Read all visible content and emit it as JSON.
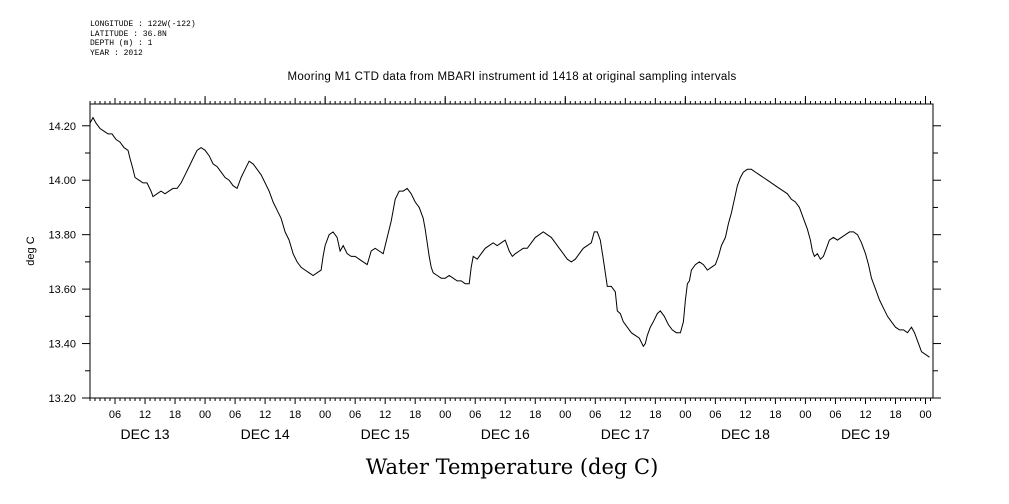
{
  "meta": {
    "longitude": "LONGITUDE : 122W(-122)",
    "latitude": "LATITUDE : 36.8N",
    "depth": "DEPTH (m) : 1",
    "year": "YEAR : 2012"
  },
  "chart_data": {
    "type": "line",
    "title": "Mooring M1 CTD data from MBARI instrument id 1418 at original sampling intervals",
    "xlabel": "Water Temperature (deg C)",
    "ylabel": "deg C",
    "xlim": [
      1.0,
      169.5
    ],
    "ylim": [
      13.2,
      14.28
    ],
    "y_ticks": [
      13.2,
      13.4,
      13.6,
      13.8,
      14.0,
      14.2
    ],
    "y_tick_labels": [
      "13.20",
      "13.40",
      "13.60",
      "13.80",
      "14.00",
      "14.20"
    ],
    "x_hour_ticks": [
      {
        "h": 6,
        "label": "06"
      },
      {
        "h": 12,
        "label": "12"
      },
      {
        "h": 18,
        "label": "18"
      },
      {
        "h": 24,
        "label": "00"
      },
      {
        "h": 30,
        "label": "06"
      },
      {
        "h": 36,
        "label": "12"
      },
      {
        "h": 42,
        "label": "18"
      },
      {
        "h": 48,
        "label": "00"
      },
      {
        "h": 54,
        "label": "06"
      },
      {
        "h": 60,
        "label": "12"
      },
      {
        "h": 66,
        "label": "18"
      },
      {
        "h": 72,
        "label": "00"
      },
      {
        "h": 78,
        "label": "06"
      },
      {
        "h": 84,
        "label": "12"
      },
      {
        "h": 90,
        "label": "18"
      },
      {
        "h": 96,
        "label": "00"
      },
      {
        "h": 102,
        "label": "06"
      },
      {
        "h": 108,
        "label": "12"
      },
      {
        "h": 114,
        "label": "18"
      },
      {
        "h": 120,
        "label": "00"
      },
      {
        "h": 126,
        "label": "06"
      },
      {
        "h": 132,
        "label": "12"
      },
      {
        "h": 138,
        "label": "18"
      },
      {
        "h": 144,
        "label": "00"
      },
      {
        "h": 150,
        "label": "06"
      },
      {
        "h": 156,
        "label": "12"
      },
      {
        "h": 162,
        "label": "18"
      },
      {
        "h": 168,
        "label": "00"
      }
    ],
    "x_day_labels": [
      {
        "h": 12,
        "label": "DEC 13"
      },
      {
        "h": 36,
        "label": "DEC 14"
      },
      {
        "h": 60,
        "label": "DEC 15"
      },
      {
        "h": 84,
        "label": "DEC 16"
      },
      {
        "h": 108,
        "label": "DEC 17"
      },
      {
        "h": 132,
        "label": "DEC 18"
      },
      {
        "h": 156,
        "label": "DEC 19"
      }
    ],
    "series": [
      {
        "points": [
          [
            1.0,
            14.21
          ],
          [
            1.6,
            14.23
          ],
          [
            2.2,
            14.21
          ],
          [
            3.0,
            14.19
          ],
          [
            3.8,
            14.18
          ],
          [
            4.6,
            14.17
          ],
          [
            5.4,
            14.17
          ],
          [
            6.2,
            14.15
          ],
          [
            7.0,
            14.14
          ],
          [
            7.8,
            14.12
          ],
          [
            8.6,
            14.11
          ],
          [
            9.0,
            14.08
          ],
          [
            9.6,
            14.04
          ],
          [
            10.0,
            14.01
          ],
          [
            10.8,
            14.0
          ],
          [
            11.6,
            13.99
          ],
          [
            12.4,
            13.99
          ],
          [
            13.2,
            13.96
          ],
          [
            13.6,
            13.94
          ],
          [
            14.4,
            13.95
          ],
          [
            15.2,
            13.96
          ],
          [
            16.0,
            13.95
          ],
          [
            16.8,
            13.96
          ],
          [
            17.6,
            13.97
          ],
          [
            18.4,
            13.97
          ],
          [
            19.2,
            13.99
          ],
          [
            20.0,
            14.02
          ],
          [
            20.8,
            14.05
          ],
          [
            21.6,
            14.08
          ],
          [
            22.4,
            14.11
          ],
          [
            23.2,
            14.12
          ],
          [
            24.0,
            14.11
          ],
          [
            24.8,
            14.09
          ],
          [
            25.6,
            14.06
          ],
          [
            26.4,
            14.05
          ],
          [
            27.2,
            14.03
          ],
          [
            28.0,
            14.01
          ],
          [
            28.8,
            14.0
          ],
          [
            29.6,
            13.98
          ],
          [
            30.4,
            13.97
          ],
          [
            31.2,
            14.01
          ],
          [
            32.0,
            14.04
          ],
          [
            32.8,
            14.07
          ],
          [
            33.6,
            14.06
          ],
          [
            34.4,
            14.04
          ],
          [
            35.2,
            14.02
          ],
          [
            36.0,
            13.99
          ],
          [
            36.8,
            13.96
          ],
          [
            37.6,
            13.92
          ],
          [
            38.4,
            13.89
          ],
          [
            39.2,
            13.86
          ],
          [
            40.0,
            13.81
          ],
          [
            40.8,
            13.78
          ],
          [
            41.6,
            13.73
          ],
          [
            42.4,
            13.7
          ],
          [
            43.2,
            13.68
          ],
          [
            44.0,
            13.67
          ],
          [
            44.8,
            13.66
          ],
          [
            45.6,
            13.65
          ],
          [
            46.4,
            13.66
          ],
          [
            47.2,
            13.67
          ],
          [
            47.6,
            13.72
          ],
          [
            48.0,
            13.76
          ],
          [
            48.8,
            13.8
          ],
          [
            49.6,
            13.81
          ],
          [
            50.4,
            13.79
          ],
          [
            51.0,
            13.74
          ],
          [
            51.6,
            13.76
          ],
          [
            52.4,
            13.73
          ],
          [
            53.2,
            13.72
          ],
          [
            54.0,
            13.72
          ],
          [
            54.8,
            13.71
          ],
          [
            55.6,
            13.7
          ],
          [
            56.4,
            13.69
          ],
          [
            57.2,
            13.74
          ],
          [
            58.0,
            13.75
          ],
          [
            58.8,
            13.74
          ],
          [
            59.6,
            13.73
          ],
          [
            60.4,
            13.79
          ],
          [
            61.2,
            13.85
          ],
          [
            62.0,
            13.93
          ],
          [
            62.8,
            13.96
          ],
          [
            63.6,
            13.96
          ],
          [
            64.4,
            13.97
          ],
          [
            65.2,
            13.95
          ],
          [
            66.0,
            13.92
          ],
          [
            66.8,
            13.9
          ],
          [
            67.6,
            13.86
          ],
          [
            68.0,
            13.82
          ],
          [
            68.4,
            13.77
          ],
          [
            68.8,
            13.72
          ],
          [
            69.2,
            13.68
          ],
          [
            69.6,
            13.66
          ],
          [
            70.4,
            13.65
          ],
          [
            71.2,
            13.64
          ],
          [
            72.0,
            13.64
          ],
          [
            72.8,
            13.65
          ],
          [
            73.6,
            13.64
          ],
          [
            74.4,
            13.63
          ],
          [
            75.2,
            13.63
          ],
          [
            76.0,
            13.62
          ],
          [
            76.8,
            13.62
          ],
          [
            77.2,
            13.68
          ],
          [
            77.6,
            13.72
          ],
          [
            78.4,
            13.71
          ],
          [
            79.2,
            13.73
          ],
          [
            80.0,
            13.75
          ],
          [
            80.8,
            13.76
          ],
          [
            81.6,
            13.77
          ],
          [
            82.4,
            13.76
          ],
          [
            83.2,
            13.77
          ],
          [
            84.0,
            13.78
          ],
          [
            84.8,
            13.74
          ],
          [
            85.4,
            13.72
          ],
          [
            86.0,
            13.73
          ],
          [
            86.8,
            13.74
          ],
          [
            87.6,
            13.75
          ],
          [
            88.4,
            13.75
          ],
          [
            89.2,
            13.77
          ],
          [
            90.0,
            13.79
          ],
          [
            90.8,
            13.8
          ],
          [
            91.6,
            13.81
          ],
          [
            92.4,
            13.8
          ],
          [
            93.2,
            13.79
          ],
          [
            94.0,
            13.77
          ],
          [
            94.8,
            13.75
          ],
          [
            95.6,
            13.73
          ],
          [
            96.4,
            13.71
          ],
          [
            97.2,
            13.7
          ],
          [
            98.0,
            13.71
          ],
          [
            98.8,
            13.73
          ],
          [
            99.6,
            13.75
          ],
          [
            100.4,
            13.76
          ],
          [
            101.2,
            13.77
          ],
          [
            101.8,
            13.81
          ],
          [
            102.4,
            13.81
          ],
          [
            103.0,
            13.78
          ],
          [
            103.6,
            13.71
          ],
          [
            104.0,
            13.66
          ],
          [
            104.4,
            13.61
          ],
          [
            105.2,
            13.61
          ],
          [
            106.0,
            13.59
          ],
          [
            106.4,
            13.52
          ],
          [
            107.0,
            13.51
          ],
          [
            107.6,
            13.48
          ],
          [
            108.4,
            13.46
          ],
          [
            109.2,
            13.44
          ],
          [
            110.0,
            13.43
          ],
          [
            110.8,
            13.42
          ],
          [
            111.6,
            13.39
          ],
          [
            112.0,
            13.4
          ],
          [
            112.4,
            13.43
          ],
          [
            113.0,
            13.46
          ],
          [
            113.6,
            13.48
          ],
          [
            114.4,
            13.51
          ],
          [
            115.0,
            13.52
          ],
          [
            115.8,
            13.5
          ],
          [
            116.6,
            13.47
          ],
          [
            117.4,
            13.45
          ],
          [
            118.2,
            13.44
          ],
          [
            119.0,
            13.44
          ],
          [
            119.6,
            13.48
          ],
          [
            120.0,
            13.56
          ],
          [
            120.4,
            13.62
          ],
          [
            120.8,
            13.63
          ],
          [
            121.2,
            13.67
          ],
          [
            122.0,
            13.69
          ],
          [
            122.8,
            13.7
          ],
          [
            123.6,
            13.69
          ],
          [
            124.4,
            13.67
          ],
          [
            125.2,
            13.68
          ],
          [
            126.0,
            13.69
          ],
          [
            126.6,
            13.72
          ],
          [
            127.2,
            13.76
          ],
          [
            128.0,
            13.79
          ],
          [
            128.6,
            13.84
          ],
          [
            129.2,
            13.88
          ],
          [
            129.8,
            13.93
          ],
          [
            130.4,
            13.98
          ],
          [
            131.0,
            14.01
          ],
          [
            131.6,
            14.03
          ],
          [
            132.4,
            14.04
          ],
          [
            133.2,
            14.04
          ],
          [
            134.0,
            14.03
          ],
          [
            134.8,
            14.02
          ],
          [
            135.6,
            14.01
          ],
          [
            136.4,
            14.0
          ],
          [
            137.2,
            13.99
          ],
          [
            138.0,
            13.98
          ],
          [
            138.8,
            13.97
          ],
          [
            139.6,
            13.96
          ],
          [
            140.4,
            13.95
          ],
          [
            141.2,
            13.93
          ],
          [
            142.0,
            13.92
          ],
          [
            142.8,
            13.9
          ],
          [
            143.6,
            13.86
          ],
          [
            144.4,
            13.82
          ],
          [
            145.0,
            13.78
          ],
          [
            145.4,
            13.74
          ],
          [
            145.8,
            13.72
          ],
          [
            146.4,
            13.73
          ],
          [
            147.0,
            13.71
          ],
          [
            147.6,
            13.72
          ],
          [
            148.2,
            13.75
          ],
          [
            148.8,
            13.78
          ],
          [
            149.6,
            13.79
          ],
          [
            150.4,
            13.78
          ],
          [
            151.2,
            13.79
          ],
          [
            152.0,
            13.8
          ],
          [
            152.8,
            13.81
          ],
          [
            153.6,
            13.81
          ],
          [
            154.4,
            13.8
          ],
          [
            155.2,
            13.77
          ],
          [
            156.0,
            13.73
          ],
          [
            156.6,
            13.69
          ],
          [
            157.2,
            13.64
          ],
          [
            158.0,
            13.6
          ],
          [
            158.8,
            13.56
          ],
          [
            159.6,
            13.53
          ],
          [
            160.4,
            13.5
          ],
          [
            161.2,
            13.48
          ],
          [
            162.0,
            13.46
          ],
          [
            162.8,
            13.45
          ],
          [
            163.6,
            13.45
          ],
          [
            164.4,
            13.44
          ],
          [
            165.2,
            13.46
          ],
          [
            165.8,
            13.44
          ],
          [
            166.4,
            13.41
          ],
          [
            167.2,
            13.37
          ],
          [
            168.0,
            13.36
          ],
          [
            168.8,
            13.35
          ],
          [
            169.6,
            13.33
          ],
          [
            170.4,
            13.31
          ],
          [
            171.2,
            13.3
          ]
        ]
      }
    ]
  }
}
